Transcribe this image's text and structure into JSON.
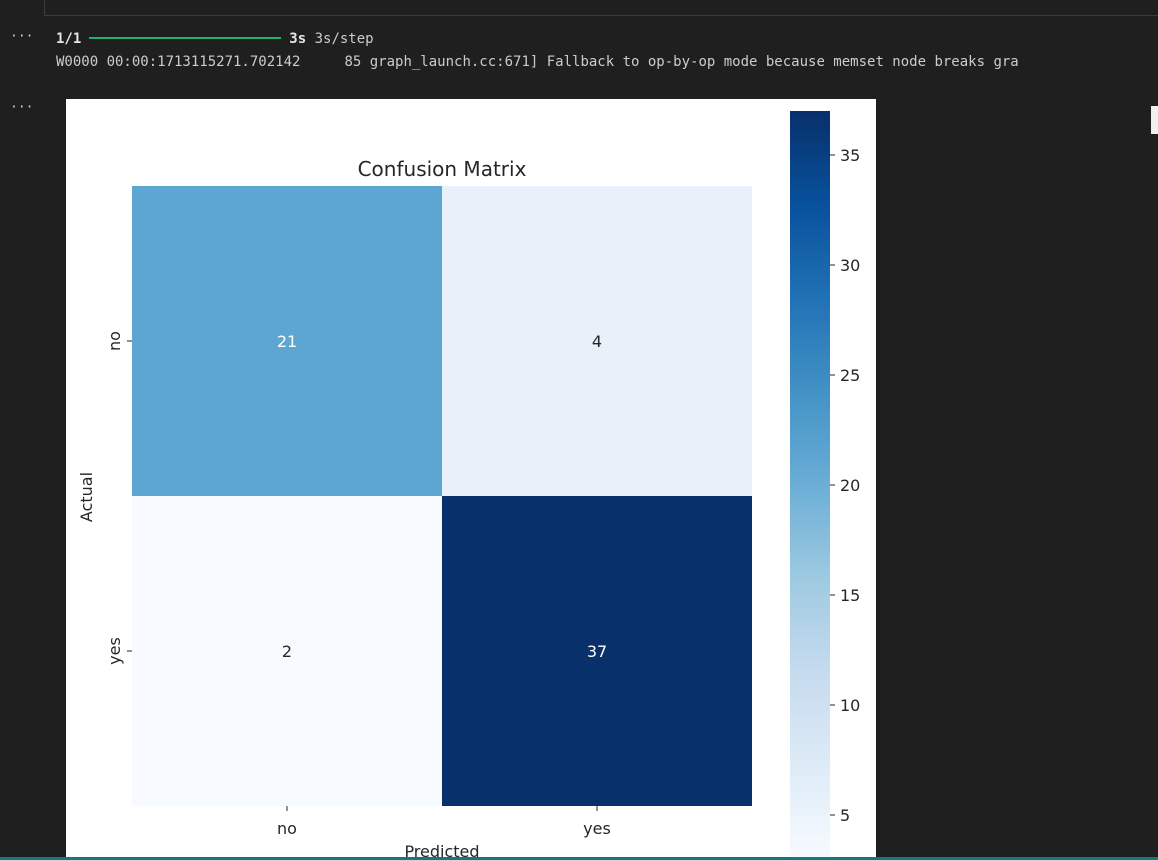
{
  "cells": {
    "menu_glyph": "···"
  },
  "output": {
    "progress_step": "1/1",
    "progress_time": "3s",
    "progress_rate": "3s/step",
    "log_prefix": "W0000 00:00:1713115271.702142",
    "log_message": "85 graph_launch.cc:671] Fallback to op-by-op mode because memset node breaks gra"
  },
  "colors": {
    "background": "#1f1f1f",
    "progress": "#1fb36b",
    "cmap_low": "#f7fbff",
    "cmap_high": "#08306b"
  },
  "chart_data": {
    "type": "heatmap",
    "title": "Confusion Matrix",
    "xlabel": "Predicted",
    "ylabel": "Actual",
    "x_categories": [
      "no",
      "yes"
    ],
    "y_categories": [
      "no",
      "yes"
    ],
    "values": [
      [
        21,
        4
      ],
      [
        2,
        37
      ]
    ],
    "colormap": "Blues",
    "color_range": [
      2,
      37
    ],
    "colorbar_ticks": [
      5,
      10,
      15,
      20,
      25,
      30,
      35
    ],
    "cell_colors": [
      [
        "#5ca6d1",
        "#e8f1fa"
      ],
      [
        "#f7fbff",
        "#08306b"
      ]
    ],
    "annotation_colors": [
      [
        "#ffffff",
        "#262626"
      ],
      [
        "#262626",
        "#ffffff"
      ]
    ]
  }
}
